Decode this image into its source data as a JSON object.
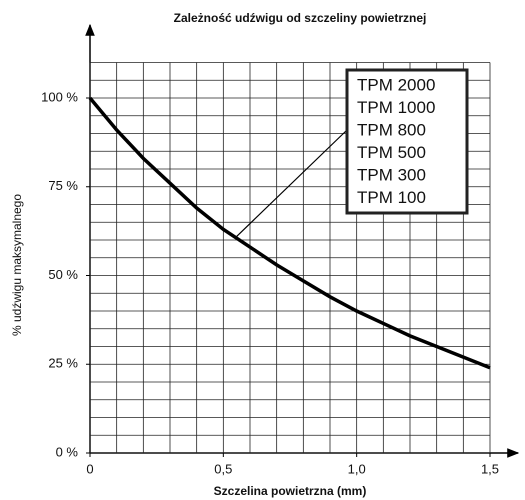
{
  "chart_data": {
    "type": "line",
    "title": "Zależność udźwigu od szczeliny powietrznej",
    "xlabel": "Szczelina powietrzna (mm)",
    "ylabel": "% udźwigu maksymalnego",
    "x": [
      0,
      0.1,
      0.2,
      0.3,
      0.4,
      0.5,
      0.6,
      0.7,
      0.8,
      0.9,
      1.0,
      1.1,
      1.2,
      1.3,
      1.4,
      1.5
    ],
    "series": [
      {
        "color": "#000000",
        "values": [
          100,
          91,
          83,
          76,
          69,
          63,
          58,
          53,
          48.5,
          44,
          40,
          36.5,
          33,
          30,
          27,
          24
        ]
      }
    ],
    "xlim": [
      0,
      1.5
    ],
    "ylim": [
      0,
      110
    ],
    "xticks": [
      0,
      {
        "value": 0.5,
        "label": "0,5"
      },
      {
        "value": 1.0,
        "label": "1,0"
      },
      {
        "value": 1.5,
        "label": "1,5"
      }
    ],
    "yticks": [
      {
        "value": 0,
        "label": "0 %"
      },
      {
        "value": 25,
        "label": "25 %"
      },
      {
        "value": 50,
        "label": "50 %"
      },
      {
        "value": 75,
        "label": "75 %"
      },
      {
        "value": 100,
        "label": "100 %"
      }
    ],
    "xgrid": [
      0,
      0.1,
      0.2,
      0.3,
      0.4,
      0.5,
      0.6,
      0.7,
      0.8,
      0.9,
      1.0,
      1.1,
      1.2,
      1.3,
      1.4,
      1.5
    ],
    "ygrid": [
      0,
      5,
      10,
      15,
      20,
      25,
      30,
      35,
      40,
      45,
      50,
      55,
      60,
      65,
      70,
      75,
      80,
      85,
      90,
      95,
      100,
      105,
      110
    ],
    "annotation_lines": [
      "TPM 2000",
      "TPM 1000",
      "TPM 800",
      "TPM 500",
      "TPM 300",
      "TPM 100"
    ],
    "annotation_xy": [
      0.55,
      61
    ]
  }
}
